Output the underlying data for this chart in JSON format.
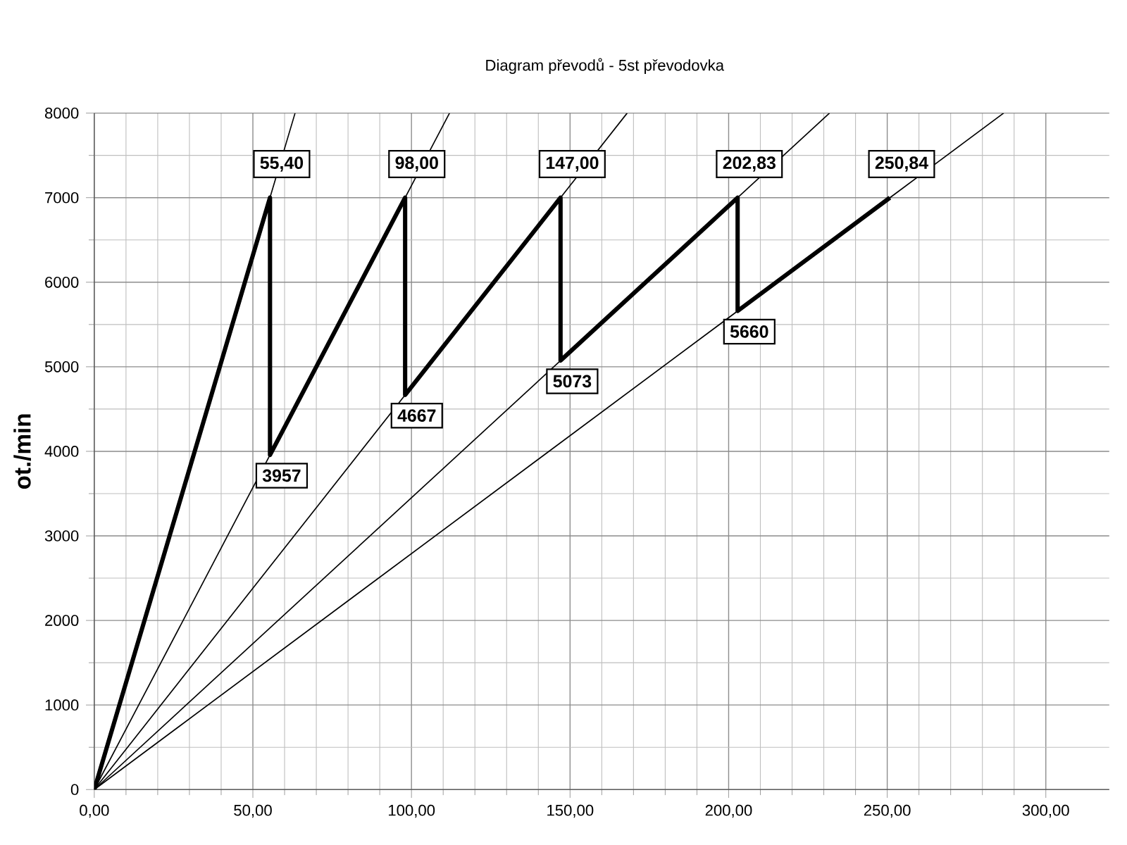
{
  "chart_data": {
    "type": "line",
    "title": "Diagram převodů - 5st převodovka",
    "ylabel": "ot./min",
    "xlim": [
      0,
      320
    ],
    "ylim": [
      0,
      8000
    ],
    "xticks": [
      {
        "value": 0,
        "label": "0,00"
      },
      {
        "value": 50,
        "label": "50,00"
      },
      {
        "value": 100,
        "label": "100,00"
      },
      {
        "value": 150,
        "label": "150,00"
      },
      {
        "value": 200,
        "label": "200,00"
      },
      {
        "value": 250,
        "label": "250,00"
      },
      {
        "value": 300,
        "label": "300,00"
      }
    ],
    "yticks": [
      0,
      1000,
      2000,
      3000,
      4000,
      5000,
      6000,
      7000,
      8000
    ],
    "grid": true,
    "series": [
      {
        "color": "#000000",
        "x": [
          0,
          55.4,
          55.4,
          98.0,
          98.0,
          147.0,
          147.0,
          202.83,
          202.83,
          250.84
        ],
        "values": [
          0,
          7000,
          3957,
          7000,
          4667,
          7000,
          5073,
          7000,
          5660,
          7000
        ]
      },
      {
        "color": "#000000",
        "x": [
          0,
          63.3
        ],
        "values": [
          0,
          8000
        ]
      },
      {
        "color": "#000000",
        "x": [
          0,
          112.0
        ],
        "values": [
          0,
          8000
        ]
      },
      {
        "color": "#000000",
        "x": [
          0,
          168.0
        ],
        "values": [
          0,
          8000
        ]
      },
      {
        "color": "#000000",
        "x": [
          0,
          231.8
        ],
        "values": [
          0,
          8000
        ]
      },
      {
        "color": "#000000",
        "x": [
          0,
          286.7
        ],
        "values": [
          0,
          8000
        ]
      }
    ],
    "annotations": [
      {
        "text": "55,40",
        "x": 55.4,
        "y": 7000
      },
      {
        "text": "3957",
        "x": 55.4,
        "y": 3957
      },
      {
        "text": "98,00",
        "x": 98.0,
        "y": 7000
      },
      {
        "text": "4667",
        "x": 98.0,
        "y": 4667
      },
      {
        "text": "147,00",
        "x": 147.0,
        "y": 7000
      },
      {
        "text": "5073",
        "x": 147.0,
        "y": 5073
      },
      {
        "text": "202,83",
        "x": 202.83,
        "y": 7000
      },
      {
        "text": "5660",
        "x": 202.83,
        "y": 5660
      },
      {
        "text": "250,84",
        "x": 250.84,
        "y": 7000
      }
    ]
  }
}
